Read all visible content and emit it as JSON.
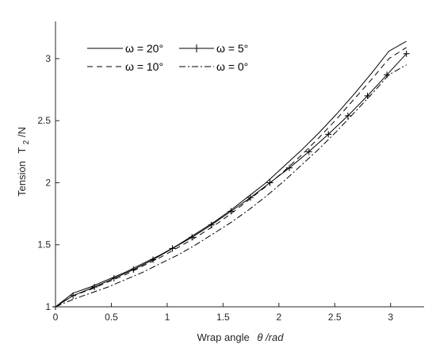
{
  "chart_data": {
    "type": "line",
    "title": "",
    "xlabel_main": "Wrap angle",
    "xlabel_sym": "θ /rad",
    "ylabel_main": "Tension",
    "ylabel_base": "T",
    "ylabel_sub": "2",
    "ylabel_unit": "/N",
    "xlim": [
      0,
      3.3
    ],
    "ylim": [
      1,
      3.3
    ],
    "xticks": [
      0,
      0.5,
      1,
      1.5,
      2,
      2.5,
      3
    ],
    "xtick_labels": [
      "0",
      "0.5",
      "1",
      "1.5",
      "2",
      "2.5",
      "3"
    ],
    "yticks": [
      1,
      1.5,
      2,
      2.5,
      3
    ],
    "ytick_labels": [
      "1",
      "1.5",
      "2",
      "2.5",
      "3"
    ],
    "grid": false,
    "legend_position": "top-left",
    "series": [
      {
        "name": "ω = 20°",
        "style": "solid",
        "marker": "none",
        "x": [
          0,
          0.157,
          0.314,
          0.471,
          0.628,
          0.785,
          0.942,
          1.1,
          1.257,
          1.414,
          1.571,
          1.728,
          1.885,
          2.042,
          2.199,
          2.356,
          2.513,
          2.67,
          2.827,
          2.985,
          3.142
        ],
        "y": [
          1.0,
          1.11,
          1.16,
          1.22,
          1.28,
          1.35,
          1.42,
          1.5,
          1.59,
          1.68,
          1.78,
          1.89,
          2.0,
          2.13,
          2.26,
          2.4,
          2.55,
          2.71,
          2.88,
          3.06,
          3.14
        ]
      },
      {
        "name": "ω = 10°",
        "style": "dashed",
        "marker": "none",
        "x": [
          0,
          0.157,
          0.314,
          0.471,
          0.628,
          0.785,
          0.942,
          1.1,
          1.257,
          1.414,
          1.571,
          1.728,
          1.885,
          2.042,
          2.199,
          2.356,
          2.513,
          2.67,
          2.827,
          2.985,
          3.142
        ],
        "y": [
          1.0,
          1.09,
          1.14,
          1.2,
          1.26,
          1.33,
          1.4,
          1.48,
          1.56,
          1.65,
          1.75,
          1.86,
          1.97,
          2.09,
          2.22,
          2.36,
          2.51,
          2.67,
          2.83,
          3.0,
          3.09
        ]
      },
      {
        "name": "ω = 5°",
        "style": "solid",
        "marker": "+",
        "x": [
          0,
          0.157,
          0.349,
          0.524,
          0.698,
          0.873,
          1.047,
          1.222,
          1.396,
          1.571,
          1.745,
          1.92,
          2.094,
          2.269,
          2.443,
          2.618,
          2.793,
          2.967,
          3.142
        ],
        "y": [
          1.0,
          1.09,
          1.16,
          1.23,
          1.3,
          1.38,
          1.47,
          1.56,
          1.66,
          1.77,
          1.88,
          2.0,
          2.12,
          2.25,
          2.39,
          2.54,
          2.7,
          2.87,
          3.04
        ]
      },
      {
        "name": "ω = 0°",
        "style": "dashdot",
        "marker": "none",
        "x": [
          0,
          0.157,
          0.314,
          0.471,
          0.628,
          0.785,
          0.942,
          1.1,
          1.257,
          1.414,
          1.571,
          1.728,
          1.885,
          2.042,
          2.199,
          2.356,
          2.513,
          2.67,
          2.827,
          2.985,
          3.142
        ],
        "y": [
          1.0,
          1.06,
          1.11,
          1.16,
          1.22,
          1.28,
          1.35,
          1.42,
          1.5,
          1.59,
          1.68,
          1.78,
          1.89,
          2.01,
          2.14,
          2.27,
          2.41,
          2.56,
          2.71,
          2.87,
          2.95
        ]
      }
    ]
  }
}
